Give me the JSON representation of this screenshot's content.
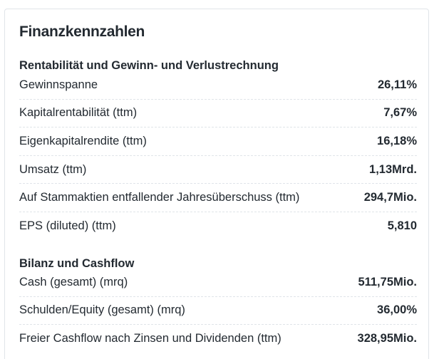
{
  "card": {
    "title": "Finanzkennzahlen"
  },
  "sections": [
    {
      "title": "Rentabilität und Gewinn- und Verlustrechnung",
      "rows": [
        {
          "label": "Gewinnspanne",
          "value": "26,11%"
        },
        {
          "label": "Kapitalrentabilität (ttm)",
          "value": "7,67%"
        },
        {
          "label": "Eigenkapitalrendite (ttm)",
          "value": "16,18%"
        },
        {
          "label": "Umsatz (ttm)",
          "value": "1,13Mrd."
        },
        {
          "label": "Auf Stammaktien entfallender Jahresüberschuss (ttm)",
          "value": "294,7Mio."
        },
        {
          "label": "EPS (diluted) (ttm)",
          "value": "5,810"
        }
      ]
    },
    {
      "title": "Bilanz und Cashflow",
      "rows": [
        {
          "label": "Cash (gesamt) (mrq)",
          "value": "511,75Mio."
        },
        {
          "label": "Schulden/Equity (gesamt) (mrq)",
          "value": "36,00%"
        },
        {
          "label": "Freier Cashflow nach Zinsen und Dividenden (ttm)",
          "value": "328,95Mio."
        }
      ]
    }
  ]
}
